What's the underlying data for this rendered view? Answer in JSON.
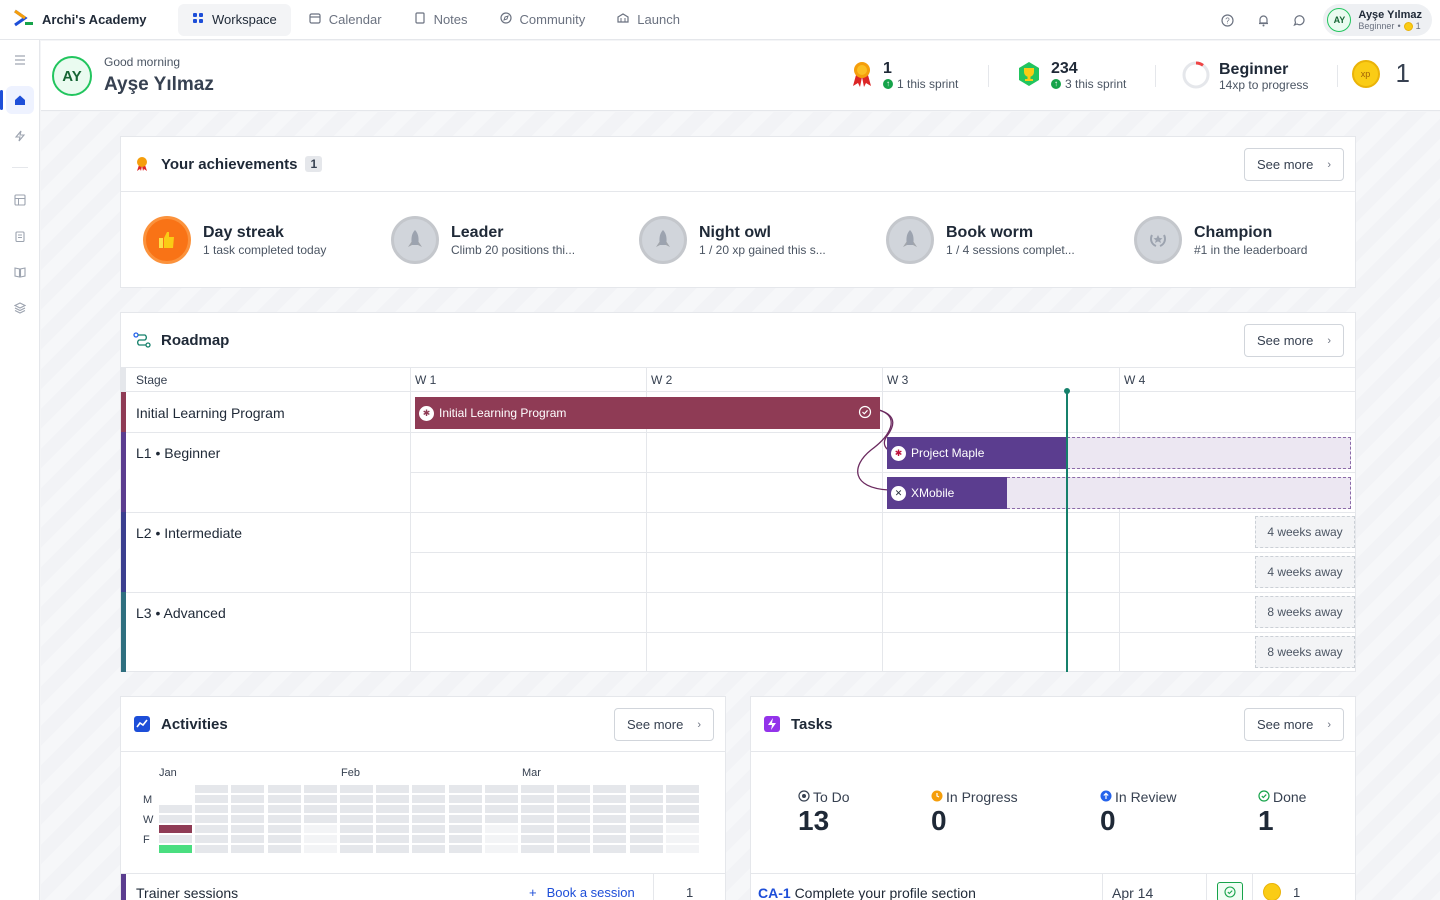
{
  "app": {
    "name": "Archi's Academy"
  },
  "nav": [
    {
      "label": "Workspace",
      "icon": "workspace-icon",
      "active": true
    },
    {
      "label": "Calendar",
      "icon": "calendar-icon"
    },
    {
      "label": "Notes",
      "icon": "notes-icon"
    },
    {
      "label": "Community",
      "icon": "community-icon"
    },
    {
      "label": "Launch",
      "icon": "launch-icon"
    }
  ],
  "user": {
    "name": "Ayşe Yılmaz",
    "initials": "AY",
    "level": "Beginner",
    "xp": "1",
    "separator": "•"
  },
  "header": {
    "greeting": "Good morning",
    "name": "Ayşe Yılmaz"
  },
  "stats": {
    "achievements": {
      "value": "1",
      "sub": "1 this sprint"
    },
    "trophies": {
      "value": "234",
      "sub": "3 this sprint"
    },
    "level": {
      "value": "Beginner",
      "sub": "14xp to progress"
    },
    "xp": {
      "value": "1",
      "coin": "xp"
    }
  },
  "achievements": {
    "title": "Your achievements",
    "count": "1",
    "see_more": "See more",
    "items": [
      {
        "title": "Day streak",
        "sub": "1 task completed today",
        "earned": true
      },
      {
        "title": "Leader",
        "sub": "Climb 20 positions thi...",
        "earned": false
      },
      {
        "title": "Night owl",
        "sub": "1 / 20 xp gained this s...",
        "earned": false
      },
      {
        "title": "Book worm",
        "sub": "1 / 4 sessions complet...",
        "earned": false
      },
      {
        "title": "Champion",
        "sub": "#1 in the leaderboard",
        "earned": false
      }
    ]
  },
  "roadmap": {
    "title": "Roadmap",
    "see_more": "See more",
    "stage_header": "Stage",
    "weeks": [
      "W 1",
      "W 2",
      "W 3",
      "W 4"
    ],
    "stages": [
      {
        "label": "Initial Learning Program",
        "color": "#8f3b55"
      },
      {
        "label": "L1 • Beginner",
        "color": "#5b3d8f"
      },
      {
        "label": "L2 • Intermediate",
        "color": "#3b3f8f"
      },
      {
        "label": "L3 • Advanced",
        "color": "#2f6f7f"
      }
    ],
    "bars": [
      {
        "label": "Initial Learning Program",
        "color": "#8f3b55",
        "done": true
      },
      {
        "label": "Project Maple",
        "color": "#5b3d8f"
      },
      {
        "label": "XMobile",
        "color": "#5b3d8f"
      }
    ],
    "away": [
      "4 weeks away",
      "4 weeks away",
      "8 weeks away",
      "8 weeks away"
    ]
  },
  "activities": {
    "title": "Activities",
    "see_more": "See more",
    "months": [
      "Jan",
      "Feb",
      "Mar"
    ],
    "days": [
      "M",
      "W",
      "F"
    ],
    "sessions": {
      "label": "Trainer sessions",
      "action": "Book a session",
      "count": "1"
    }
  },
  "tasks": {
    "title": "Tasks",
    "see_more": "See more",
    "columns": [
      {
        "label": "To Do",
        "count": "13",
        "color": "#374151"
      },
      {
        "label": "In Progress",
        "count": "0",
        "color": "#f59e0b"
      },
      {
        "label": "In Review",
        "count": "0",
        "color": "#2563eb"
      },
      {
        "label": "Done",
        "count": "1",
        "color": "#16a34a"
      }
    ],
    "row": {
      "id": "CA-1",
      "title": "Complete your profile section",
      "date": "Apr 14",
      "xp": "1"
    }
  },
  "colors": {
    "accent": "#1d4ed8",
    "success": "#16a34a",
    "gold": "#facc15",
    "today_line": "#15806b"
  }
}
